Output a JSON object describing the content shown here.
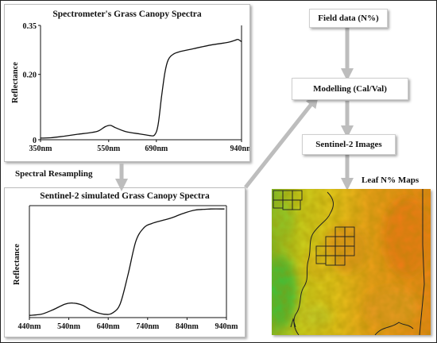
{
  "nodes": {
    "field_data": "Field data (N%)",
    "modelling": "Modelling (Cal/Val)",
    "sentinel_images": "Sentinel-2 Images",
    "leaf_maps": "Leaf N% Maps",
    "spectral_resampling": "Spectral Resampling"
  },
  "panels": {
    "top": {
      "title": "Spectrometer's Grass Canopy Spectra"
    },
    "bottom": {
      "title": "Sentinel-2 simulated Grass Canopy Spectra"
    }
  },
  "chart_data": [
    {
      "type": "line",
      "title": "Spectrometer's Grass Canopy Spectra",
      "ylabel": "Reflectance",
      "xlabel": "",
      "xlim": [
        350,
        940
      ],
      "ylim": [
        0,
        0.35
      ],
      "x_ticks": [
        "350nm",
        "550nm",
        "690nm",
        "940nm"
      ],
      "y_ticks": [
        "0",
        "0.20",
        "0.35"
      ],
      "series": [
        {
          "x": [
            350,
            380,
            420,
            460,
            500,
            520,
            540,
            555,
            570,
            600,
            640,
            670,
            685,
            695,
            705,
            715,
            725,
            740,
            760,
            800,
            850,
            900,
            920,
            930,
            940
          ],
          "y": [
            0.005,
            0.006,
            0.011,
            0.017,
            0.022,
            0.027,
            0.04,
            0.044,
            0.037,
            0.025,
            0.018,
            0.013,
            0.015,
            0.045,
            0.13,
            0.205,
            0.245,
            0.262,
            0.27,
            0.279,
            0.29,
            0.298,
            0.304,
            0.307,
            0.3
          ]
        }
      ]
    },
    {
      "type": "line",
      "title": "Sentinel-2 simulated Grass Canopy Spectra",
      "ylabel": "Reflectance",
      "xlabel": "",
      "xlim": [
        440,
        940
      ],
      "ylim": [
        0,
        1
      ],
      "x_ticks": [
        "440nm",
        "540nm",
        "640nm",
        "740nm",
        "840nm",
        "940nm"
      ],
      "y_ticks": [],
      "series": [
        {
          "x": [
            440,
            470,
            500,
            530,
            550,
            575,
            600,
            630,
            650,
            670,
            690,
            710,
            730,
            750,
            780,
            800,
            830,
            860,
            900,
            935
          ],
          "y": [
            0.02,
            0.03,
            0.07,
            0.12,
            0.13,
            0.11,
            0.06,
            0.03,
            0.04,
            0.12,
            0.38,
            0.68,
            0.8,
            0.84,
            0.87,
            0.89,
            0.93,
            0.96,
            0.97,
            0.97
          ]
        }
      ]
    }
  ],
  "colors": {
    "arrow": "#bdbdbd",
    "map_green": "#36c232",
    "map_yellow": "#e7d51b",
    "map_orange": "#f08a1c"
  }
}
